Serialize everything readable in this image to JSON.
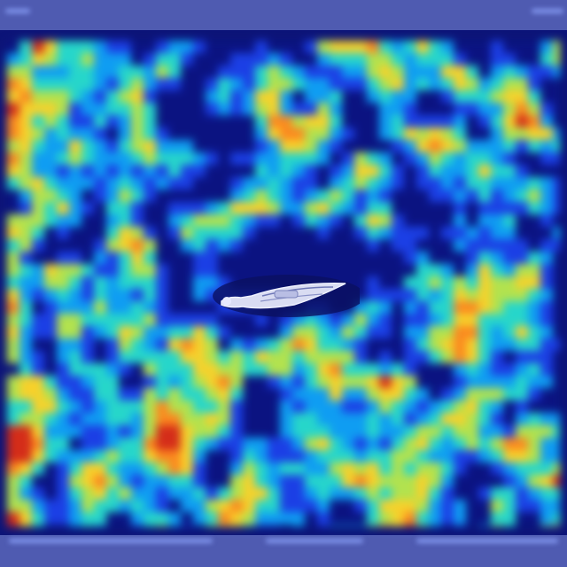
{
  "image": {
    "kind": "attention-heatmap-overlay",
    "subject": "sailboat-on-water",
    "colormap": [
      "#0c1478",
      "#1f3fd6",
      "#1a9be8",
      "#33d3c8",
      "#b4e05a",
      "#f2d13a",
      "#f28a2a",
      "#c8301e"
    ],
    "background": "#4c57ae",
    "band_color": "#4f5bb1"
  }
}
